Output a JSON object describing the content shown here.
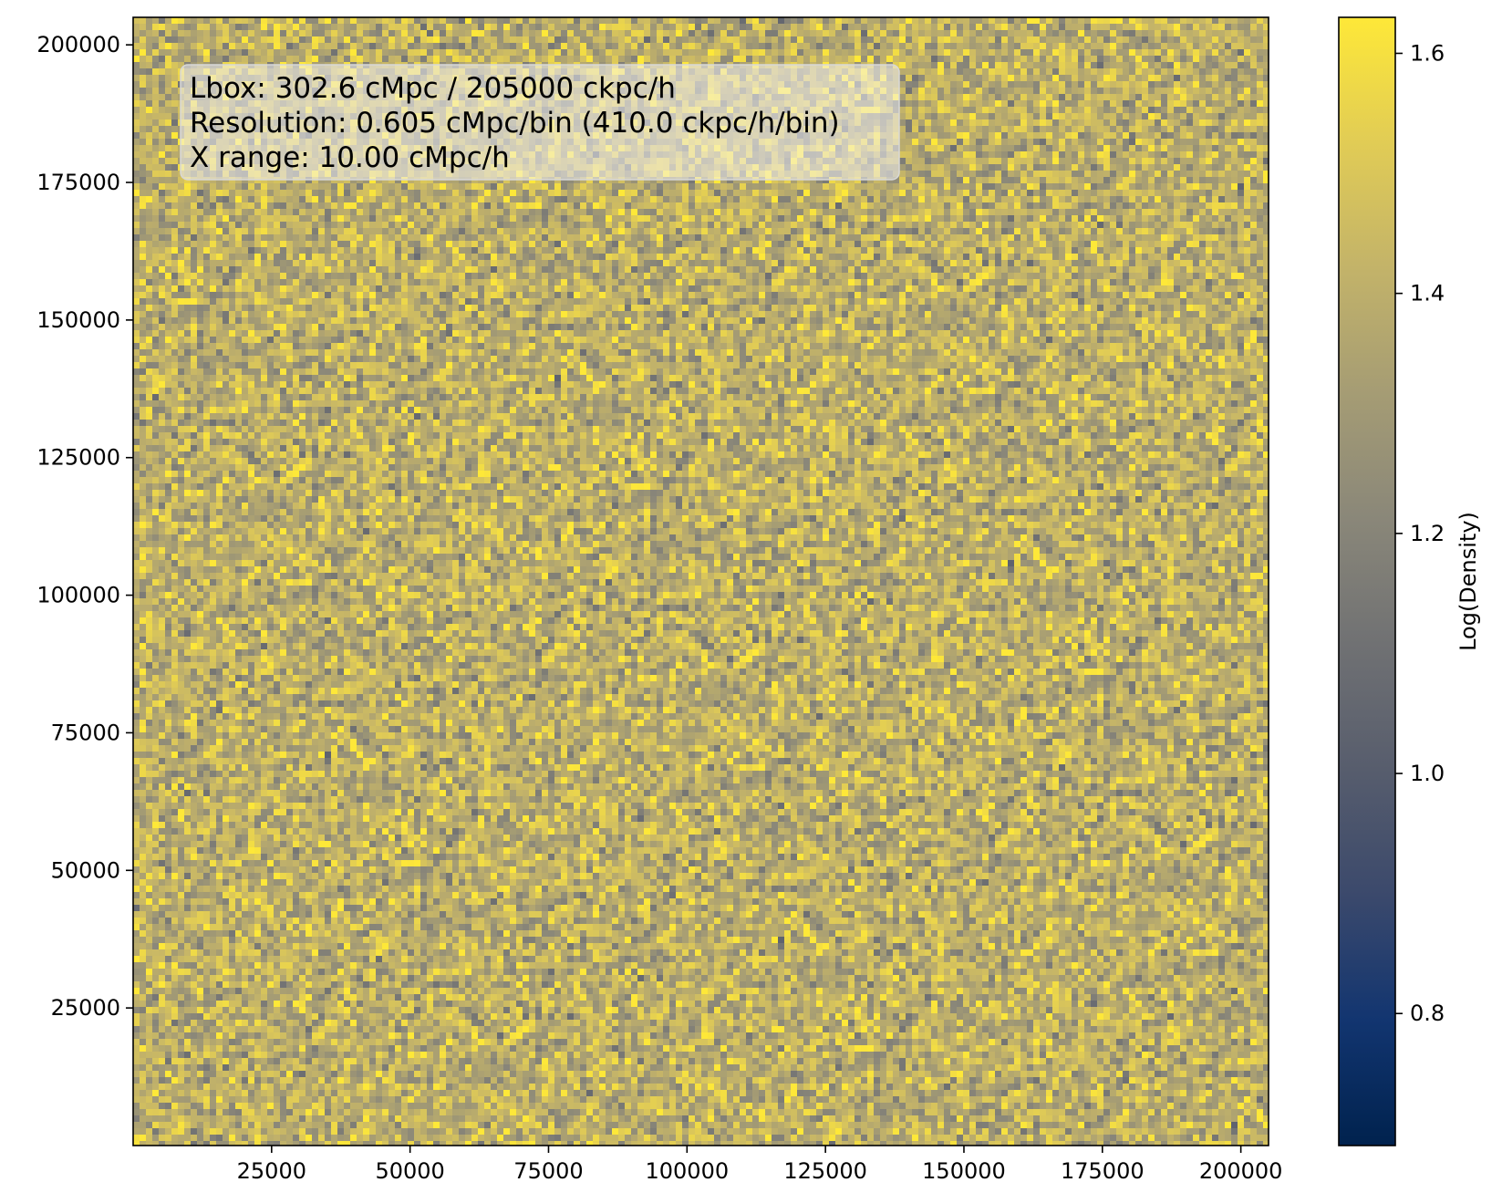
{
  "chart_data": {
    "type": "heatmap",
    "title": "",
    "xlabel": "",
    "ylabel": "",
    "xlim": [
      0,
      205000
    ],
    "ylim": [
      0,
      205000
    ],
    "x_ticks": [
      {
        "value": 25000,
        "label": "25000"
      },
      {
        "value": 50000,
        "label": "50000"
      },
      {
        "value": 75000,
        "label": "75000"
      },
      {
        "value": 100000,
        "label": "100000"
      },
      {
        "value": 125000,
        "label": "125000"
      },
      {
        "value": 150000,
        "label": "150000"
      },
      {
        "value": 175000,
        "label": "175000"
      },
      {
        "value": 200000,
        "label": "200000"
      }
    ],
    "y_ticks": [
      {
        "value": 25000,
        "label": "25000"
      },
      {
        "value": 50000,
        "label": "50000"
      },
      {
        "value": 75000,
        "label": "75000"
      },
      {
        "value": 100000,
        "label": "100000"
      },
      {
        "value": 125000,
        "label": "125000"
      },
      {
        "value": 150000,
        "label": "150000"
      },
      {
        "value": 175000,
        "label": "175000"
      },
      {
        "value": 200000,
        "label": "200000"
      }
    ],
    "colorbar": {
      "label": "Log(Density)",
      "range": [
        0.69,
        1.63
      ],
      "colormap": "cividis",
      "ticks": [
        {
          "value": 0.8,
          "label": "0.8"
        },
        {
          "value": 1.0,
          "label": "1.0"
        },
        {
          "value": 1.2,
          "label": "1.2"
        },
        {
          "value": 1.4,
          "label": "1.4"
        },
        {
          "value": 1.6,
          "label": "1.6"
        }
      ],
      "stops": [
        "#00224e",
        "#123570",
        "#3b496c",
        "#575d6d",
        "#707173",
        "#8a8779",
        "#a59c74",
        "#c3b369",
        "#e1cc55",
        "#fee838"
      ]
    },
    "field": {
      "typical_value": 1.4,
      "spread": 0.12,
      "appearance": "uniform noise field"
    },
    "annotation_lines": [
      "Lbox: 302.6 cMpc / 205000 ckpc/h",
      "Resolution: 0.605 cMpc/bin (410.0 ckpc/h/bin)",
      "X range: 10.00 cMpc/h"
    ],
    "grid": false,
    "legend": "none"
  }
}
